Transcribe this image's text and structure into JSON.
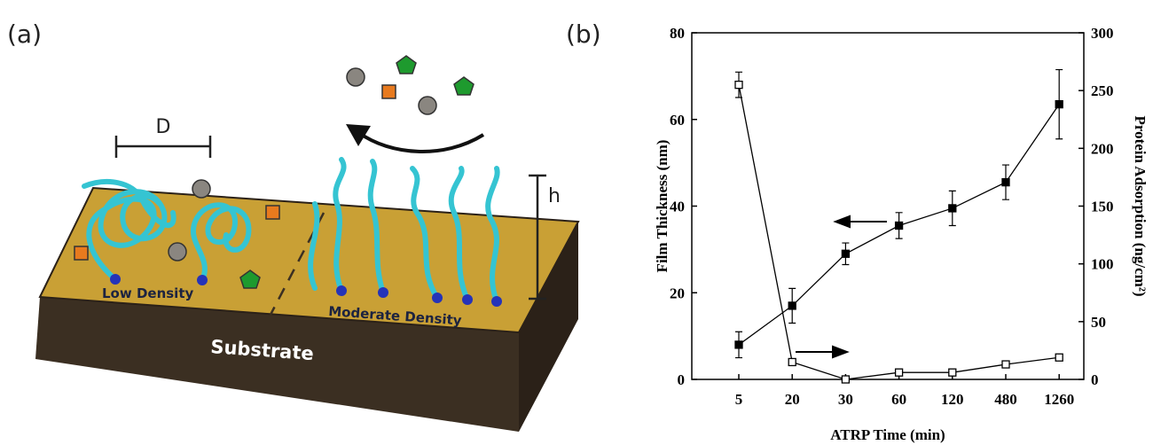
{
  "panel_a": {
    "label": "(a)",
    "spacing_label": "D",
    "height_label": "h",
    "low_label": "Low Density",
    "moderate_label": "Moderate Density",
    "substrate_label": "Substrate"
  },
  "chart_data": {
    "type": "line",
    "panel_label": "(b)",
    "x_label": "ATRP Time (min)",
    "y_label": "Film Thickness (nm)",
    "y2_label": "Protein Adsorption (ng/cm²)",
    "categories": [
      "5",
      "20",
      "30",
      "60",
      "120",
      "480",
      "1260"
    ],
    "ylim": [
      0,
      80
    ],
    "yticks": [
      0,
      20,
      40,
      60,
      80
    ],
    "y2lim": [
      0,
      300
    ],
    "y2ticks": [
      0,
      50,
      100,
      150,
      200,
      250,
      300
    ],
    "series": [
      {
        "color": "#000000",
        "marker": "filled",
        "values": [
          8,
          17,
          29,
          35.5,
          39.5,
          45.5,
          63.5
        ],
        "errors": [
          3,
          4,
          2.5,
          3,
          4,
          4,
          8
        ]
      },
      {
        "color": "#000000",
        "marker": "open",
        "axis": "y2",
        "values": [
          255,
          15,
          0,
          6,
          6,
          13,
          19
        ],
        "errors": [
          11,
          2,
          1,
          2,
          2,
          2,
          2
        ]
      }
    ]
  }
}
